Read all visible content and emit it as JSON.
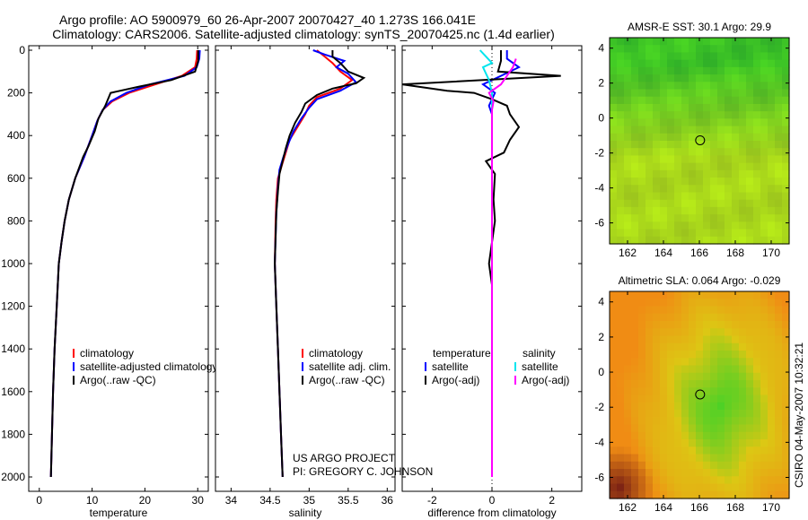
{
  "title": {
    "line1": "Argo profile: AO 5900979_60 26-Apr-2007 20070427_40 1.273S 166.041E",
    "line2": "Climatology: CARS2006. Satellite-adjusted climatology: synTS_20070425.nc (1.4d earlier)"
  },
  "colors": {
    "climatology": "#ff0000",
    "satellite": "#0000ff",
    "argo": "#000000",
    "cyan": "#00e5ee",
    "magenta": "#ff00ff"
  },
  "credit": {
    "line1": "US ARGO PROJECT",
    "line2": "PI: GREGORY C. JOHNSON"
  },
  "timestamp": "CSIRO 04-May-2007 10:32:21",
  "depth_ticks": [
    "0",
    "200",
    "400",
    "600",
    "800",
    "1000",
    "1200",
    "1400",
    "1600",
    "1800",
    "2000"
  ],
  "chart_data": [
    {
      "type": "line",
      "xlabel": "temperature",
      "xlim": [
        -2,
        32
      ],
      "ylim": [
        2050,
        0
      ],
      "xticks": [
        0,
        10,
        20,
        30
      ],
      "xtick_labels": [
        "0",
        "10",
        "20",
        "30"
      ],
      "legend": [
        "climatology",
        "satellite-adjusted climatology",
        "Argo(..raw -QC)"
      ],
      "series": [
        {
          "name": "climatology",
          "color": "#ff0000",
          "points": [
            [
              29.9,
              0
            ],
            [
              29.8,
              40
            ],
            [
              29.5,
              80
            ],
            [
              27,
              120
            ],
            [
              22,
              160
            ],
            [
              17,
              200
            ],
            [
              13.8,
              240
            ],
            [
              12,
              280
            ],
            [
              11,
              330
            ],
            [
              10,
              400
            ],
            [
              8.5,
              500
            ],
            [
              6.8,
              600
            ],
            [
              5.6,
              700
            ],
            [
              4.8,
              800
            ],
            [
              4.2,
              900
            ],
            [
              3.7,
              1000
            ],
            [
              3.3,
              1200
            ],
            [
              2.9,
              1400
            ],
            [
              2.6,
              1600
            ],
            [
              2.4,
              1800
            ],
            [
              2.2,
              2000
            ]
          ]
        },
        {
          "name": "satellite-adjusted climatology",
          "color": "#0000ff",
          "points": [
            [
              30.4,
              0
            ],
            [
              30.3,
              40
            ],
            [
              29.8,
              80
            ],
            [
              27.5,
              120
            ],
            [
              21,
              160
            ],
            [
              16.5,
              200
            ],
            [
              13.5,
              240
            ],
            [
              12,
              280
            ],
            [
              11,
              330
            ],
            [
              10,
              400
            ],
            [
              8.5,
              500
            ],
            [
              6.8,
              600
            ],
            [
              5.6,
              700
            ],
            [
              4.8,
              800
            ],
            [
              4.2,
              900
            ],
            [
              3.7,
              1000
            ],
            [
              3.3,
              1200
            ],
            [
              2.9,
              1400
            ],
            [
              2.6,
              1600
            ],
            [
              2.4,
              1800
            ],
            [
              2.2,
              2000
            ]
          ]
        },
        {
          "name": "Argo(..raw -QC)",
          "color": "#000000",
          "points": [
            [
              30.1,
              0
            ],
            [
              30.1,
              50
            ],
            [
              29.5,
              100
            ],
            [
              25,
              140
            ],
            [
              19,
              170
            ],
            [
              13.5,
              200
            ],
            [
              12.5,
              260
            ],
            [
              11.2,
              320
            ],
            [
              10.5,
              380
            ],
            [
              9.3,
              450
            ],
            [
              8.3,
              500
            ],
            [
              6.8,
              600
            ],
            [
              5.6,
              700
            ],
            [
              4.8,
              800
            ],
            [
              4.2,
              900
            ],
            [
              3.7,
              1000
            ],
            [
              3.3,
              1200
            ],
            [
              2.9,
              1400
            ],
            [
              2.6,
              1600
            ],
            [
              2.4,
              1800
            ],
            [
              2.2,
              2000
            ]
          ]
        }
      ]
    },
    {
      "type": "line",
      "xlabel": "salinity",
      "xlim": [
        33.8,
        36.1
      ],
      "ylim": [
        2050,
        0
      ],
      "xticks": [
        34,
        34.5,
        35,
        35.5,
        36
      ],
      "xtick_labels": [
        "34",
        "34.5",
        "35",
        "35.5",
        "36"
      ],
      "legend": [
        "climatology",
        "satellite adj. clim.",
        "Argo(..raw -QC)"
      ],
      "series": [
        {
          "name": "climatology",
          "color": "#ff0000",
          "points": [
            [
              35.1,
              0
            ],
            [
              35.2,
              30
            ],
            [
              35.3,
              60
            ],
            [
              35.4,
              100
            ],
            [
              35.55,
              140
            ],
            [
              35.4,
              180
            ],
            [
              35.1,
              220
            ],
            [
              35,
              260
            ],
            [
              34.95,
              300
            ],
            [
              34.85,
              360
            ],
            [
              34.75,
              420
            ],
            [
              34.7,
              480
            ],
            [
              34.65,
              540
            ],
            [
              34.6,
              600
            ],
            [
              34.58,
              700
            ],
            [
              34.57,
              800
            ],
            [
              34.56,
              1000
            ],
            [
              34.58,
              1200
            ],
            [
              34.6,
              1400
            ],
            [
              34.62,
              1600
            ],
            [
              34.64,
              1800
            ],
            [
              34.66,
              2000
            ]
          ]
        },
        {
          "name": "satellite adj. clim.",
          "color": "#0000ff",
          "points": [
            [
              35.05,
              0
            ],
            [
              35.2,
              20
            ],
            [
              35.45,
              50
            ],
            [
              35.35,
              80
            ],
            [
              35.5,
              110
            ],
            [
              35.6,
              150
            ],
            [
              35.4,
              190
            ],
            [
              35.1,
              230
            ],
            [
              35,
              270
            ],
            [
              34.9,
              320
            ],
            [
              34.8,
              380
            ],
            [
              34.73,
              440
            ],
            [
              34.67,
              500
            ],
            [
              34.62,
              560
            ],
            [
              34.6,
              640
            ],
            [
              34.58,
              760
            ],
            [
              34.56,
              1000
            ],
            [
              34.58,
              1200
            ],
            [
              34.6,
              1400
            ],
            [
              34.62,
              1600
            ],
            [
              34.64,
              1800
            ],
            [
              34.66,
              2000
            ]
          ]
        },
        {
          "name": "Argo(..raw -QC)",
          "color": "#000000",
          "points": [
            [
              35.3,
              0
            ],
            [
              35.3,
              30
            ],
            [
              35.4,
              60
            ],
            [
              35.5,
              100
            ],
            [
              35.7,
              130
            ],
            [
              35.6,
              155
            ],
            [
              35.3,
              180
            ],
            [
              35.1,
              210
            ],
            [
              34.95,
              250
            ],
            [
              34.9,
              290
            ],
            [
              34.82,
              340
            ],
            [
              34.75,
              400
            ],
            [
              34.7,
              460
            ],
            [
              34.66,
              520
            ],
            [
              34.62,
              580
            ],
            [
              34.6,
              660
            ],
            [
              34.58,
              760
            ],
            [
              34.56,
              1000
            ],
            [
              34.58,
              1200
            ],
            [
              34.6,
              1400
            ],
            [
              34.62,
              1600
            ],
            [
              34.64,
              1800
            ],
            [
              34.66,
              2000
            ]
          ]
        }
      ]
    },
    {
      "type": "line",
      "xlabel": "difference from climatology",
      "xlim": [
        -3,
        3
      ],
      "ylim": [
        2050,
        0
      ],
      "xticks": [
        -2,
        0,
        2
      ],
      "xtick_labels": [
        "-2",
        "0",
        "2"
      ],
      "legend_columns": [
        {
          "heading": "temperature",
          "items": [
            "satellite",
            "Argo(-adj)"
          ]
        },
        {
          "heading": "salinity",
          "items": [
            "satellite",
            "Argo(-adj)"
          ]
        }
      ],
      "series": [
        {
          "name": "temperature satellite",
          "color": "#0000ff",
          "points": [
            [
              0.5,
              0
            ],
            [
              0.5,
              40
            ],
            [
              0.9,
              80
            ],
            [
              0.3,
              120
            ],
            [
              -0.3,
              160
            ],
            [
              0.1,
              200
            ],
            [
              -0.1,
              260
            ],
            [
              0,
              300
            ],
            [
              0,
              400
            ],
            [
              0,
              600
            ],
            [
              0,
              800
            ],
            [
              0,
              1000
            ],
            [
              0,
              1200
            ],
            [
              0,
              2000
            ]
          ]
        },
        {
          "name": "temperature Argo(-adj)",
          "color": "#000000",
          "points": [
            [
              0.3,
              0
            ],
            [
              0.3,
              50
            ],
            [
              0.2,
              100
            ],
            [
              2.3,
              120
            ],
            [
              -3,
              160
            ],
            [
              -1.5,
              190
            ],
            [
              -0.6,
              200
            ],
            [
              0,
              230
            ],
            [
              0.5,
              260
            ],
            [
              0.6,
              300
            ],
            [
              0.9,
              360
            ],
            [
              0.6,
              420
            ],
            [
              0.4,
              480
            ],
            [
              -0.2,
              520
            ],
            [
              0.1,
              580
            ],
            [
              0.05,
              700
            ],
            [
              0.1,
              800
            ],
            [
              0,
              900
            ],
            [
              -0.1,
              1000
            ],
            [
              0,
              1100
            ],
            [
              0,
              1200
            ],
            [
              0,
              2000
            ]
          ]
        },
        {
          "name": "salinity satellite",
          "color": "#00e5ee",
          "points": [
            [
              -0.4,
              0
            ],
            [
              -0.2,
              30
            ],
            [
              0,
              60
            ],
            [
              -0.3,
              80
            ],
            [
              -0.1,
              140
            ],
            [
              0,
              200
            ],
            [
              0,
              300
            ],
            [
              0,
              600
            ],
            [
              0,
              1000
            ],
            [
              0,
              1400
            ],
            [
              0,
              1800
            ],
            [
              0,
              2000
            ]
          ]
        },
        {
          "name": "salinity Argo(-adj)",
          "color": "#ff00ff",
          "points": [
            [
              0.8,
              40
            ],
            [
              0.7,
              80
            ],
            [
              0.5,
              120
            ],
            [
              0.3,
              160
            ],
            [
              -0.1,
              200
            ],
            [
              0.05,
              240
            ],
            [
              0,
              280
            ],
            [
              0,
              400
            ],
            [
              0,
              600
            ],
            [
              0,
              1000
            ],
            [
              0,
              2000
            ]
          ]
        }
      ]
    },
    {
      "type": "heatmap",
      "title": "AMSR-E SST: 30.1  Argo: 29.9",
      "xlim": [
        161,
        171
      ],
      "ylim": [
        -7.2,
        4.6
      ],
      "xticks": [
        162,
        164,
        166,
        168,
        170
      ],
      "yticks": [
        4,
        2,
        0,
        -2,
        -4,
        -6
      ],
      "profile_location": [
        166.041,
        -1.273
      ]
    },
    {
      "type": "heatmap",
      "title": "Altimetric SLA: 0.064  Argo: -0.029",
      "xlim": [
        161,
        171
      ],
      "ylim": [
        -7.2,
        4.6
      ],
      "xticks": [
        162,
        164,
        166,
        168,
        170
      ],
      "yticks": [
        4,
        2,
        0,
        -2,
        -4,
        -6
      ],
      "profile_location": [
        166.041,
        -1.273
      ]
    }
  ]
}
